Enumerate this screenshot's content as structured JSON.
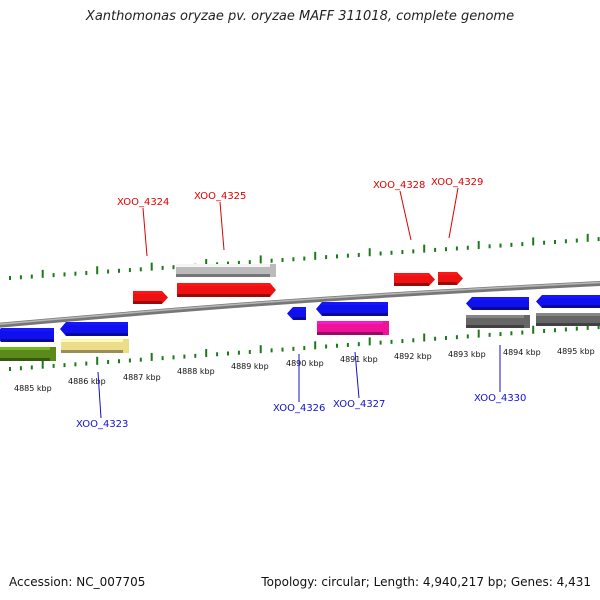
{
  "title": "Xanthomonas oryzae pv. oryzae MAFF 311018, complete genome",
  "footer": {
    "accession": "Accession: NC_007705",
    "summary": "Topology: circular; Length: 4,940,217 bp; Genes: 4,431"
  },
  "colors": {
    "forward_label": "#e00000",
    "reverse_label": "#1010d0",
    "tick": "#1a7a1a",
    "backbone": "#888888"
  },
  "kbp_labels": [
    "4885 kbp",
    "4886 kbp",
    "4887 kbp",
    "4888 kbp",
    "4889 kbp",
    "4890 kbp",
    "4891 kbp",
    "4892 kbp",
    "4893 kbp",
    "4894 kbp",
    "4895 kbp"
  ],
  "forward_labels": [
    "XOO_4324",
    "XOO_4325",
    "XOO_4328",
    "XOO_4329"
  ],
  "reverse_labels": [
    "XOO_4323",
    "XOO_4326",
    "XOO_4327",
    "XOO_4330"
  ],
  "features": [
    {
      "name": "forward-gene-1",
      "color": "#ee1111",
      "strand": "forward",
      "ptype": "gene"
    },
    {
      "name": "forward-gene-2",
      "color": "#ee1111",
      "strand": "forward",
      "ptype": "gene"
    },
    {
      "name": "forward-cds-2",
      "color": "#bbbbbb",
      "strand": "forward",
      "ptype": "cds"
    },
    {
      "name": "forward-gene-3",
      "color": "#ee1111",
      "strand": "forward",
      "ptype": "gene"
    },
    {
      "name": "forward-gene-4",
      "color": "#ee1111",
      "strand": "forward",
      "ptype": "gene"
    },
    {
      "name": "reverse-gene-0",
      "color": "#1010ee",
      "strand": "reverse",
      "ptype": "gene"
    },
    {
      "name": "reverse-cds-0",
      "color": "#5a8a1a",
      "strand": "reverse",
      "ptype": "cds"
    },
    {
      "name": "reverse-gene-1",
      "color": "#1010ee",
      "strand": "reverse",
      "ptype": "gene"
    },
    {
      "name": "reverse-cds-1",
      "color": "#eedd88",
      "strand": "reverse",
      "ptype": "cds"
    },
    {
      "name": "reverse-gene-2",
      "color": "#1010ee",
      "strand": "reverse",
      "ptype": "gene"
    },
    {
      "name": "reverse-gene-3",
      "color": "#1010ee",
      "strand": "reverse",
      "ptype": "gene"
    },
    {
      "name": "reverse-cds-3",
      "color": "#ee1199",
      "strand": "reverse",
      "ptype": "cds"
    },
    {
      "name": "reverse-gene-4",
      "color": "#1010ee",
      "strand": "reverse",
      "ptype": "gene"
    },
    {
      "name": "reverse-cds-4",
      "color": "#666666",
      "strand": "reverse",
      "ptype": "cds"
    },
    {
      "name": "reverse-gene-5",
      "color": "#1010ee",
      "strand": "reverse",
      "ptype": "gene"
    },
    {
      "name": "reverse-cds-5",
      "color": "#666666",
      "strand": "reverse",
      "ptype": "cds"
    }
  ]
}
